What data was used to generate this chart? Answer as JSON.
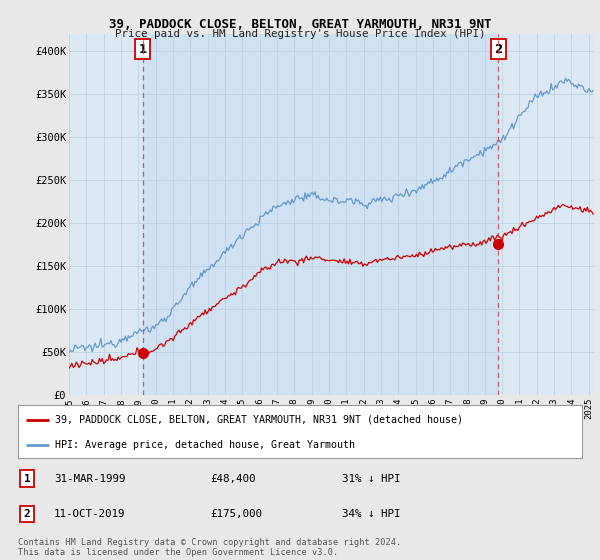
{
  "title": "39, PADDOCK CLOSE, BELTON, GREAT YARMOUTH, NR31 9NT",
  "subtitle": "Price paid vs. HM Land Registry's House Price Index (HPI)",
  "background_color": "#e8e8e8",
  "plot_bg_color": "#dce9f5",
  "ylim": [
    0,
    420000
  ],
  "yticks": [
    0,
    50000,
    100000,
    150000,
    200000,
    250000,
    300000,
    350000,
    400000
  ],
  "ytick_labels": [
    "£0",
    "£50K",
    "£100K",
    "£150K",
    "£200K",
    "£250K",
    "£300K",
    "£350K",
    "£400K"
  ],
  "legend_label_red": "39, PADDOCK CLOSE, BELTON, GREAT YARMOUTH, NR31 9NT (detached house)",
  "legend_label_blue": "HPI: Average price, detached house, Great Yarmouth",
  "transaction1_date": "31-MAR-1999",
  "transaction1_price": "£48,400",
  "transaction1_hpi": "31% ↓ HPI",
  "transaction2_date": "11-OCT-2019",
  "transaction2_price": "£175,000",
  "transaction2_hpi": "34% ↓ HPI",
  "footer": "Contains HM Land Registry data © Crown copyright and database right 2024.\nThis data is licensed under the Open Government Licence v3.0.",
  "red_color": "#cc0000",
  "blue_color": "#6699cc",
  "marker1_x": 1999.25,
  "marker1_y": 48400,
  "marker2_x": 2019.78,
  "marker2_y": 175000,
  "vline1_x": 1999.25,
  "vline2_x": 2019.78,
  "shade_color": "#c8ddf0",
  "xmin": 1995.0,
  "xmax": 2025.3
}
